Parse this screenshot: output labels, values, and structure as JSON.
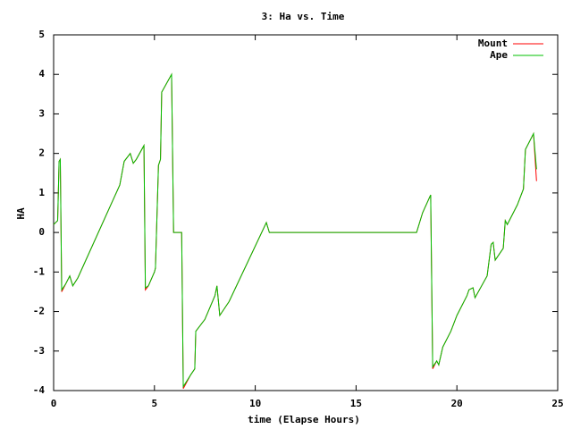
{
  "chart_data": {
    "type": "line",
    "title": "3: Ha vs. Time",
    "x_label": "time (Elapse Hours)",
    "y_label": "HA",
    "x": [
      0,
      0.2,
      0.27,
      0.33,
      0.4,
      0.6,
      0.8,
      0.95,
      1.2,
      3.28,
      3.5,
      3.8,
      3.95,
      4.1,
      4.48,
      4.55,
      4.7,
      5.0,
      5.05,
      5.2,
      5.3,
      5.36,
      5.85,
      5.95,
      6.35,
      6.43,
      6.8,
      7.0,
      7.05,
      7.5,
      8.0,
      8.1,
      8.24,
      8.7,
      10.55,
      10.7,
      18.0,
      18.3,
      18.7,
      18.8,
      19.0,
      19.1,
      19.3,
      19.7,
      20.0,
      20.5,
      20.6,
      20.8,
      20.9,
      21.5,
      21.7,
      21.8,
      21.9,
      22.3,
      22.4,
      22.5,
      23.0,
      23.3,
      23.4,
      23.7,
      23.8,
      23.95
    ],
    "series": [
      {
        "name": "Mount",
        "color": "#ff0000",
        "values": [
          0.2,
          0.3,
          1.8,
          1.85,
          -1.5,
          -1.3,
          -1.1,
          -1.35,
          -1.15,
          1.2,
          1.8,
          2.0,
          1.75,
          1.85,
          2.2,
          -1.45,
          -1.35,
          -1.0,
          -0.9,
          1.7,
          1.85,
          3.55,
          4.0,
          0.0,
          0.0,
          -3.95,
          -3.6,
          -3.45,
          -2.5,
          -2.2,
          -1.6,
          -1.35,
          -2.1,
          -1.75,
          0.25,
          0.0,
          0.0,
          0.5,
          0.95,
          -3.45,
          -3.25,
          -3.35,
          -2.9,
          -2.5,
          -2.1,
          -1.6,
          -1.45,
          -1.4,
          -1.65,
          -1.1,
          -0.3,
          -0.25,
          -0.7,
          -0.4,
          0.3,
          0.2,
          0.7,
          1.1,
          2.1,
          2.4,
          2.5,
          1.3
        ]
      },
      {
        "name": "Ape",
        "color": "#00c000",
        "values": [
          0.2,
          0.3,
          1.8,
          1.85,
          -1.45,
          -1.3,
          -1.1,
          -1.35,
          -1.15,
          1.2,
          1.8,
          2.0,
          1.75,
          1.85,
          2.2,
          -1.4,
          -1.35,
          -1.0,
          -0.9,
          1.7,
          1.85,
          3.55,
          4.0,
          0.0,
          0.0,
          -3.9,
          -3.6,
          -3.45,
          -2.5,
          -2.2,
          -1.6,
          -1.35,
          -2.1,
          -1.75,
          0.25,
          0.0,
          0.0,
          0.5,
          0.95,
          -3.4,
          -3.25,
          -3.35,
          -2.9,
          -2.5,
          -2.1,
          -1.6,
          -1.45,
          -1.4,
          -1.65,
          -1.1,
          -0.3,
          -0.25,
          -0.7,
          -0.4,
          0.3,
          0.2,
          0.7,
          1.1,
          2.1,
          2.4,
          2.5,
          1.6
        ]
      }
    ],
    "xlim": [
      0,
      25
    ],
    "xticks": [
      0,
      5,
      10,
      15,
      20,
      25
    ],
    "ylim": [
      -4,
      5
    ],
    "yticks": [
      -4,
      -3,
      -2,
      -1,
      0,
      1,
      2,
      3,
      4,
      5
    ],
    "legend": "top-right"
  }
}
